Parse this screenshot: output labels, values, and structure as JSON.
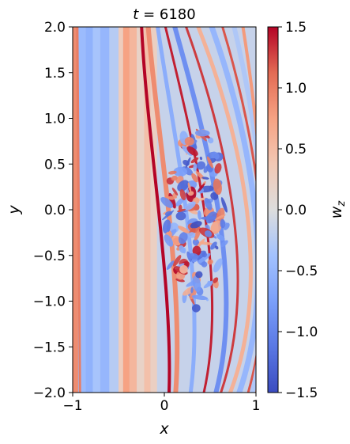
{
  "chart_data": {
    "type": "heatmap",
    "title": "t = 6180",
    "title_var": "t",
    "title_value": "6180",
    "xlabel": "x",
    "ylabel": "y",
    "xlim": [
      -1,
      1
    ],
    "ylim": [
      -2,
      2
    ],
    "x_ticks": [
      -1,
      0,
      1
    ],
    "x_tick_labels": [
      "−1",
      "0",
      "1"
    ],
    "y_ticks": [
      2.0,
      1.5,
      1.0,
      0.5,
      0.0,
      -0.5,
      -1.0,
      -1.5,
      -2.0
    ],
    "y_tick_labels": [
      "2.0",
      "1.5",
      "1.0",
      "0.5",
      "0.0",
      "−0.5",
      "−1.0",
      "−1.5",
      "−2.0"
    ],
    "colorbar": {
      "label": "w_z",
      "label_base": "w",
      "label_sub": "z",
      "range": [
        -1.5,
        1.5
      ],
      "ticks": [
        1.5,
        1.0,
        0.5,
        0.0,
        -0.5,
        -1.0,
        -1.5
      ],
      "tick_labels": [
        "1.5",
        "1.0",
        "0.5",
        "0.0",
        "−0.5",
        "−1.0",
        "−1.5"
      ],
      "colormap": "coolwarm"
    },
    "field_features": {
      "background_band_x": [
        -0.95,
        -0.5
      ],
      "background_band_value": -0.5,
      "positive_band_x": [
        -0.45,
        -0.3
      ],
      "positive_band_value": 0.7,
      "turbulent_region_center": [
        0.35,
        -0.1
      ],
      "turbulent_region_value_range": [
        -1.5,
        1.5
      ]
    }
  },
  "colors": {
    "cmap_low": "#3b4cc0",
    "cmap_mid": "#dddddd",
    "cmap_high": "#b40426"
  }
}
